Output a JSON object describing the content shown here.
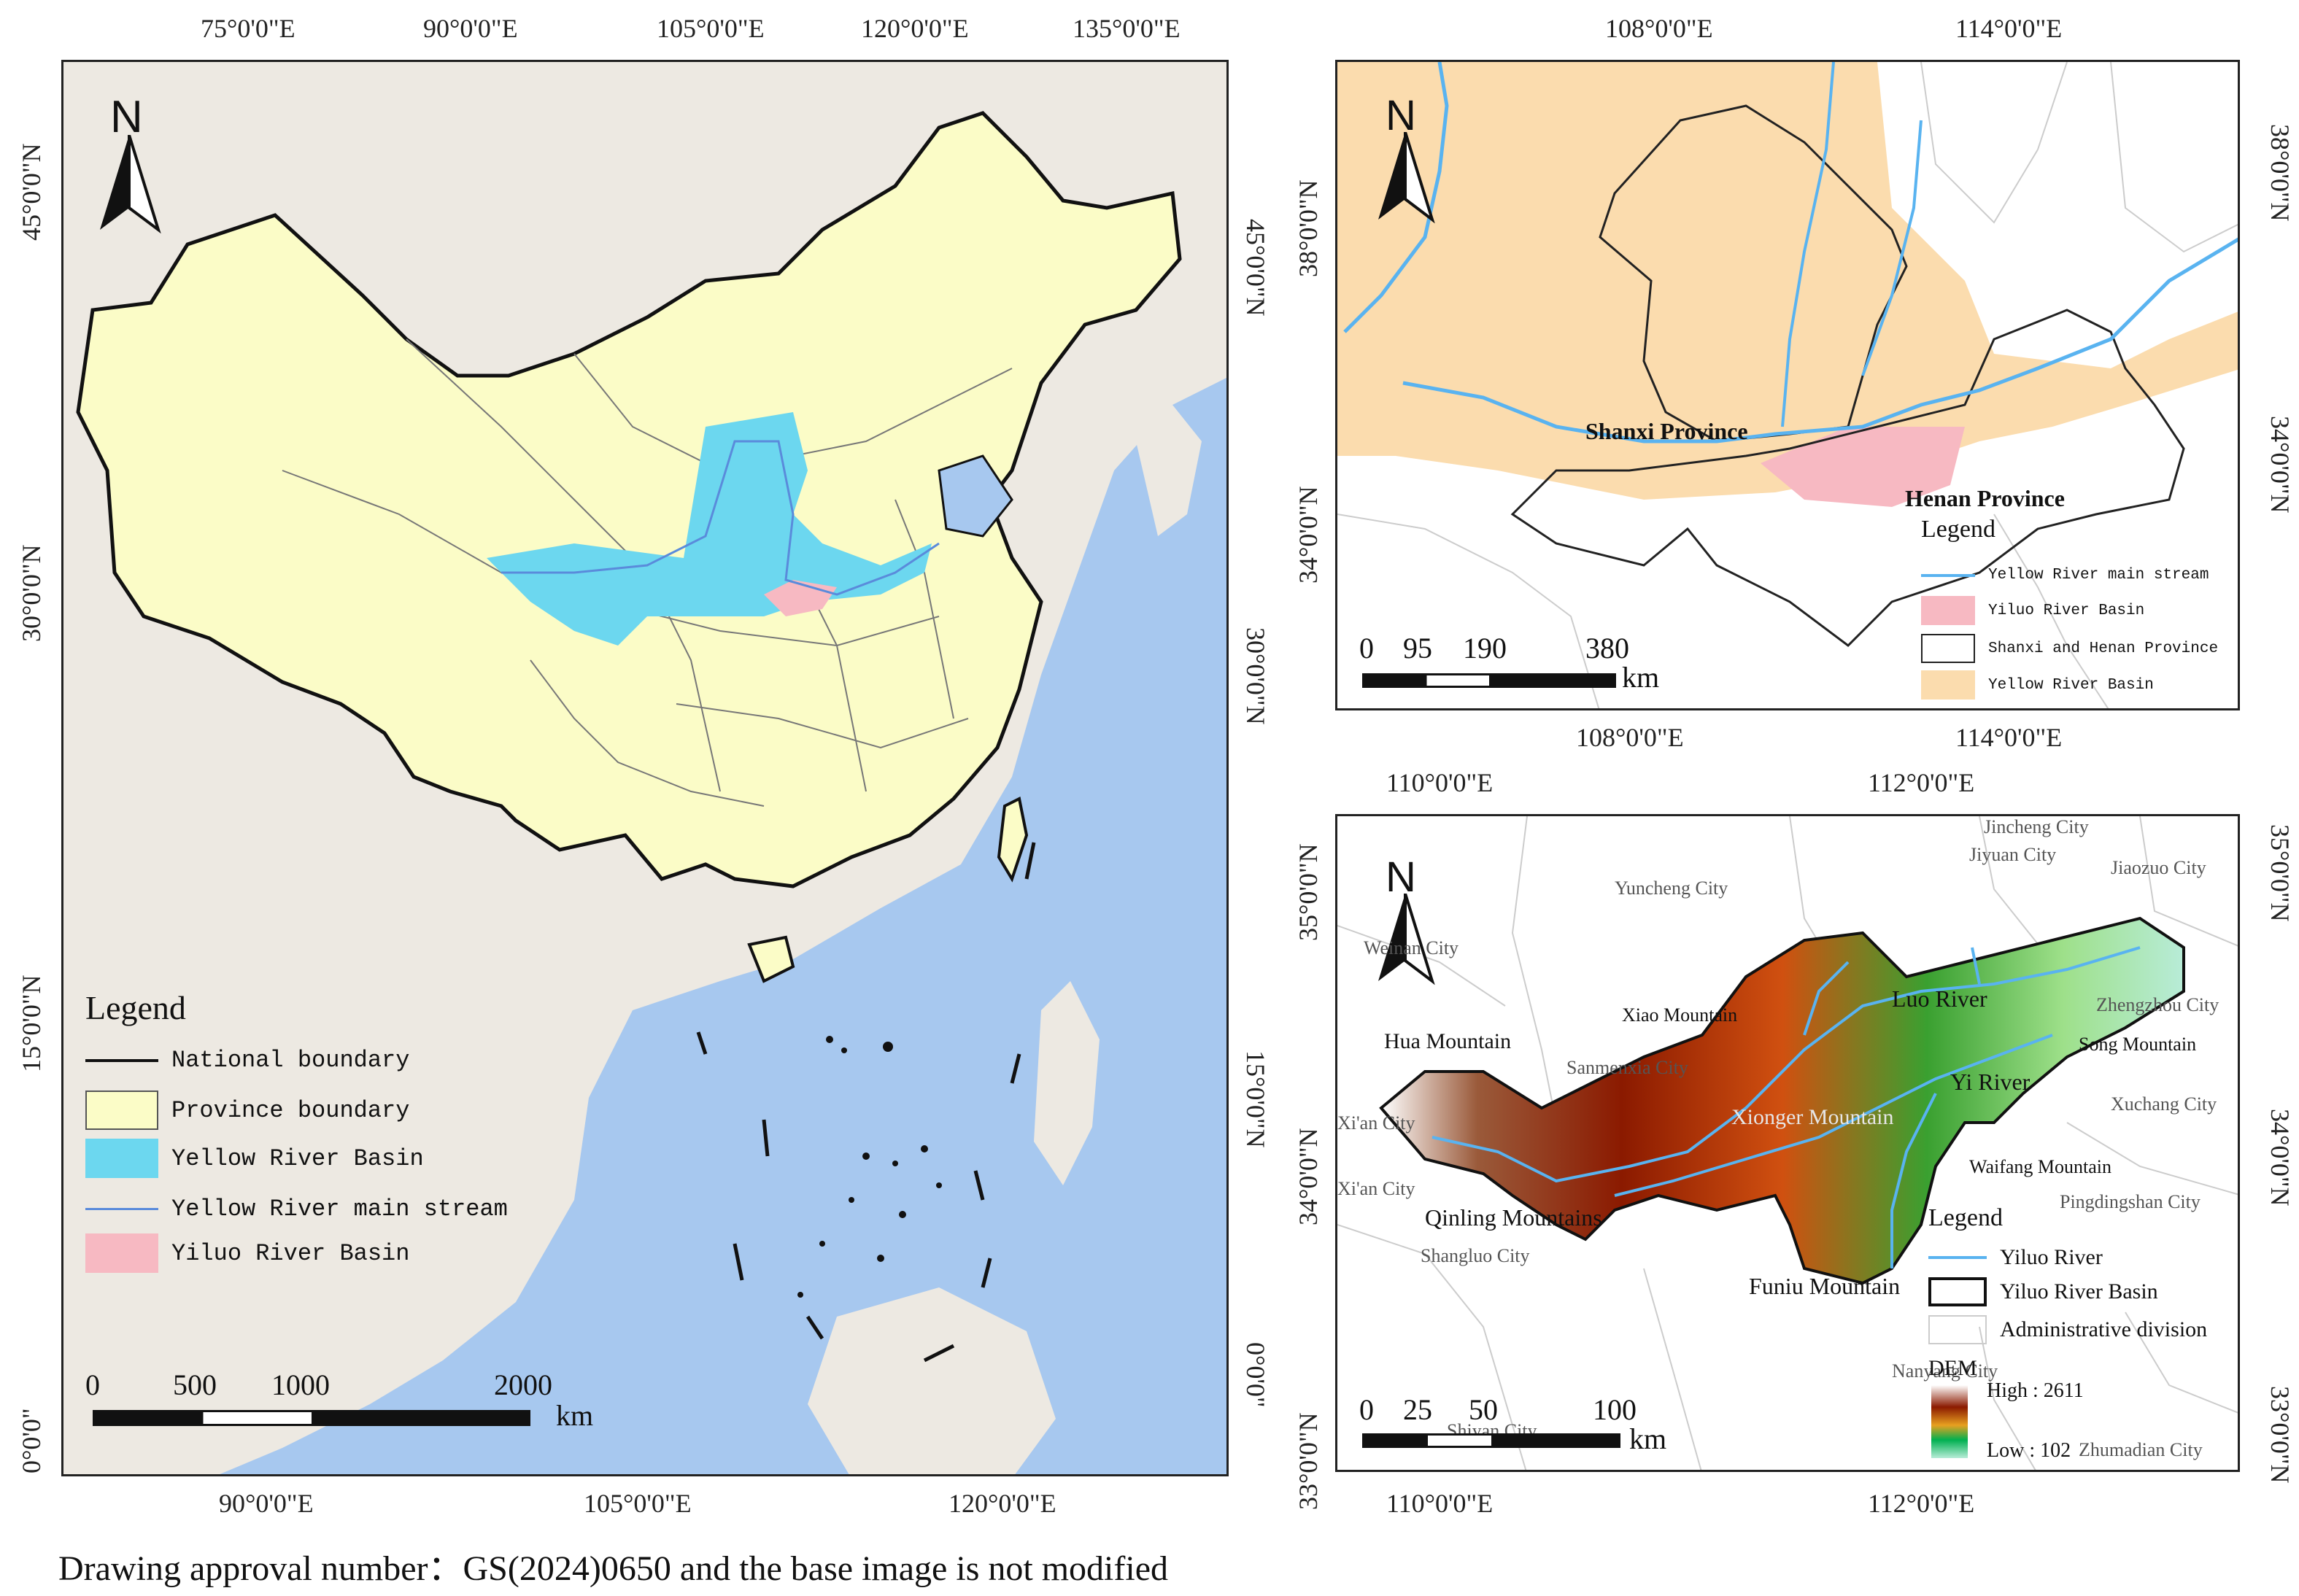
{
  "caption": "Drawing approval number：GS(2024)0650 and the base image is not modified",
  "colors": {
    "ocean": "#a7c8ef",
    "china_fill": "#fbfcc7",
    "neighbor_land": "#ede9e2",
    "yellow_river_basin": "#6cd7ef",
    "yellow_river_stream": "#5a8bdb",
    "yiluo_basin": "#f7b9c2",
    "yellow_basin_beige": "#fbdcae",
    "river_blue": "#59b3f0",
    "dem_high": "#ffffff",
    "dem_mid": "#8b1a00",
    "dem_low": "#00b050"
  },
  "map_a": {
    "north_label": "N",
    "top_ticks": [
      "75°0'0\"E",
      "90°0'0\"E",
      "105°0'0\"E",
      "120°0'0\"E",
      "135°0'0\"E"
    ],
    "bottom_ticks": [
      "90°0'0\"E",
      "105°0'0\"E",
      "120°0'0\"E"
    ],
    "left_ticks": [
      "45°0'0\"N",
      "30°0'0\"N",
      "15°0'0\"N",
      "0°0'0\""
    ],
    "right_ticks": [
      "45°0'0\"N",
      "30°0'0\"N",
      "15°0'0\"N",
      "0°0'0\""
    ],
    "legend": {
      "title": "Legend",
      "items": [
        {
          "label": "National boundary",
          "icon": "line-black"
        },
        {
          "label": "Province boundary",
          "icon": "box-yellow"
        },
        {
          "label": "Yellow River Basin",
          "icon": "box-cyan"
        },
        {
          "label": "Yellow River main stream",
          "icon": "line-blue"
        },
        {
          "label": "Yiluo River Basin",
          "icon": "box-pink"
        }
      ]
    },
    "scale": {
      "numbers": [
        "0",
        "500",
        "1000",
        "2000"
      ],
      "unit": "km"
    }
  },
  "map_b": {
    "north_label": "N",
    "top_ticks": [
      "108°0'0\"E",
      "114°0'0\"E"
    ],
    "bottom_ticks": [
      "108°0'0\"E",
      "114°0'0\"E"
    ],
    "left_ticks": [
      "38°0'0\"N",
      "34°0'0\"N"
    ],
    "right_ticks": [
      "38°0'0\"N",
      "34°0'0\"N"
    ],
    "labels": {
      "shanxi": "Shanxi Province",
      "henan": "Henan Province"
    },
    "legend": {
      "title": "Legend",
      "items": [
        {
          "label": "Yellow River main stream",
          "icon": "line-blue"
        },
        {
          "label": "Yiluo River Basin",
          "icon": "box-pink"
        },
        {
          "label": "Shanxi and Henan Province",
          "icon": "box-outline"
        },
        {
          "label": "Yellow River Basin",
          "icon": "box-beige"
        }
      ]
    },
    "scale": {
      "numbers": [
        "0",
        "95",
        "190",
        "380"
      ],
      "unit": "km"
    }
  },
  "map_c": {
    "north_label": "N",
    "top_ticks": [
      "110°0'0\"E",
      "112°0'0\"E"
    ],
    "bottom_ticks": [
      "110°0'0\"E",
      "112°0'0\"E"
    ],
    "left_ticks": [
      "35°0'0\"N",
      "34°0'0\"N",
      "33°0'0\"N"
    ],
    "right_ticks": [
      "35°0'0\"N",
      "34°0'0\"N",
      "33°0'0\"N"
    ],
    "cities": [
      "Jincheng City",
      "Jiyuan City",
      "Jiaozuo City",
      "Yuncheng City",
      "Weinan City",
      "Zhengzhou City",
      "Sanmenxia City",
      "Xuchang City",
      "Xi'an City",
      "Xi'an City",
      "Pingdingshan City",
      "Shangluo City",
      "Nanyang City",
      "Shiyan City",
      "Zhumadian City"
    ],
    "features": {
      "xiao_mountain": "Xiao Mountain",
      "luo_river": "Luo River",
      "hua_mountain": "Hua Mountain",
      "song_mountain": "Song Mountain",
      "yi_river": "Yi River",
      "xionger_mountain": "Xionger Mountain",
      "waifang_mountain": "Waifang Mountain",
      "qinling_mountains": "Qinling Mountains",
      "funiu_mountain": "Funiu Mountain"
    },
    "legend": {
      "title": "Legend",
      "items": [
        {
          "label": "Yiluo River",
          "icon": "line-blue"
        },
        {
          "label": "Yiluo River Basin",
          "icon": "box-outline-thick"
        },
        {
          "label": "Administrative division",
          "icon": "box-outline-light"
        }
      ],
      "dem_title": "DEM",
      "dem_high": "High : 2611",
      "dem_low": "Low : 102"
    },
    "scale": {
      "numbers": [
        "0",
        "25",
        "50",
        "100"
      ],
      "unit": "km"
    }
  }
}
